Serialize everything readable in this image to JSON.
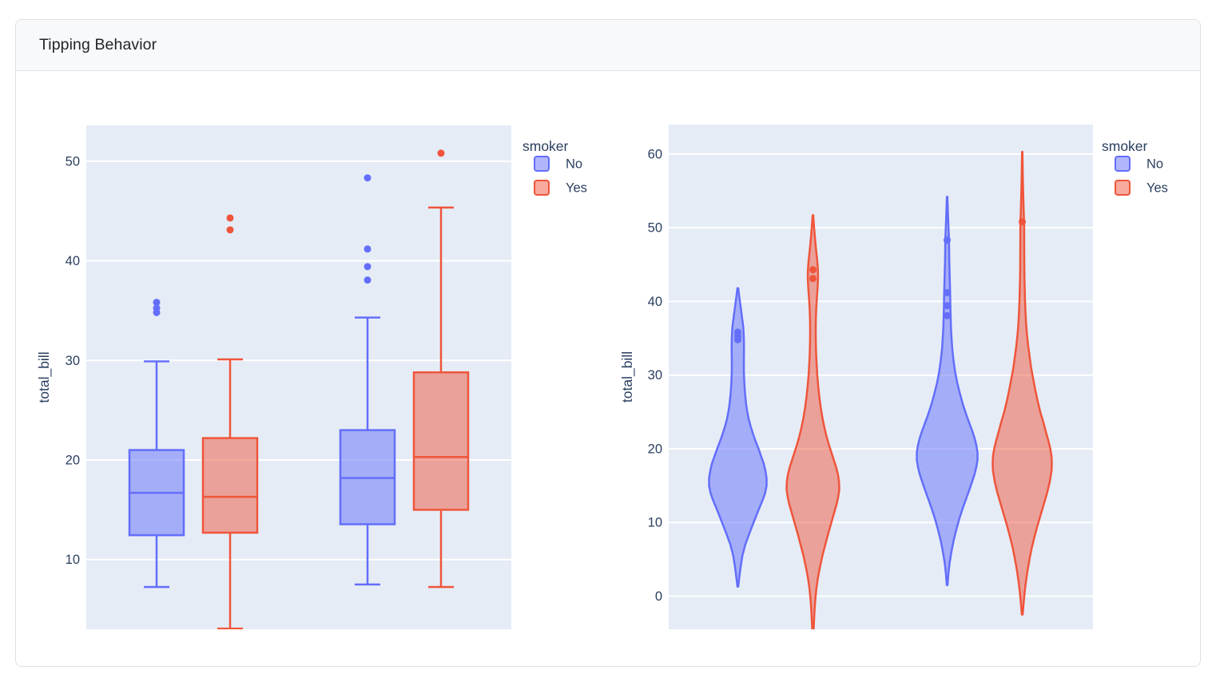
{
  "card": {
    "title": "Tipping Behavior"
  },
  "colors": {
    "no": "#636EFA",
    "yes": "#EF553B",
    "plot_bg": "#E5ECF6",
    "grid": "#FFFFFF",
    "axis_text": "#2A3F5F"
  },
  "chart_data": [
    {
      "type": "box",
      "title": "",
      "ylabel": "total_bill",
      "ylim": [
        3.0,
        53.6
      ],
      "yticks": [
        10,
        20,
        30,
        40,
        50
      ],
      "grid": true,
      "categories": [
        "",
        ""
      ],
      "legend": {
        "title": "smoker",
        "position": "outside-top-right",
        "entries": [
          "No",
          "Yes"
        ]
      },
      "series": [
        {
          "name": "No",
          "color": "#636EFA",
          "boxes": [
            {
              "whisker_low": 7.25,
              "q1": 12.45,
              "median": 16.7,
              "q3": 21.0,
              "whisker_high": 29.9,
              "outliers": [
                34.81,
                35.26,
                35.83
              ]
            },
            {
              "whisker_low": 7.5,
              "q1": 13.55,
              "median": 18.2,
              "q3": 23.0,
              "whisker_high": 34.3,
              "outliers": [
                38.07,
                39.42,
                41.19,
                48.33
              ]
            }
          ]
        },
        {
          "name": "Yes",
          "color": "#EF553B",
          "boxes": [
            {
              "whisker_low": 3.07,
              "q1": 12.7,
              "median": 16.3,
              "q3": 22.2,
              "whisker_high": 30.1,
              "outliers": [
                43.11,
                44.3
              ]
            },
            {
              "whisker_low": 7.25,
              "q1": 15.0,
              "median": 20.3,
              "q3": 28.8,
              "whisker_high": 45.35,
              "outliers": [
                50.81
              ]
            }
          ]
        }
      ]
    },
    {
      "type": "violin",
      "title": "",
      "ylabel": "total_bill",
      "ylim": [
        -4.5,
        64.0
      ],
      "yticks": [
        0,
        10,
        20,
        30,
        40,
        50,
        60
      ],
      "grid": true,
      "categories": [
        "",
        ""
      ],
      "legend": {
        "title": "smoker",
        "position": "outside-top-right",
        "entries": [
          "No",
          "Yes"
        ]
      },
      "series": [
        {
          "name": "No",
          "color": "#636EFA",
          "violins": [
            {
              "span": [
                1.3,
                41.8
              ],
              "points": [
                34.81,
                35.26,
                35.83
              ],
              "density": [
                [
                  1.3,
                  0.015
                ],
                [
                  2.5,
                  0.05
                ],
                [
                  4,
                  0.1
                ],
                [
                  5.5,
                  0.16
                ],
                [
                  7,
                  0.26
                ],
                [
                  8.5,
                  0.4
                ],
                [
                  10,
                  0.55
                ],
                [
                  11.5,
                  0.7
                ],
                [
                  13,
                  0.86
                ],
                [
                  14,
                  0.95
                ],
                [
                  15,
                  1.0
                ],
                [
                  16,
                  1.0
                ],
                [
                  17,
                  0.96
                ],
                [
                  18,
                  0.9
                ],
                [
                  19,
                  0.81
                ],
                [
                  20,
                  0.72
                ],
                [
                  21,
                  0.62
                ],
                [
                  22,
                  0.53
                ],
                [
                  23,
                  0.45
                ],
                [
                  24,
                  0.38
                ],
                [
                  25,
                  0.33
                ],
                [
                  26,
                  0.29
                ],
                [
                  27.5,
                  0.25
                ],
                [
                  29,
                  0.225
                ],
                [
                  30.5,
                  0.21
                ],
                [
                  32,
                  0.21
                ],
                [
                  33.5,
                  0.215
                ],
                [
                  35,
                  0.21
                ],
                [
                  36.5,
                  0.19
                ],
                [
                  38,
                  0.14
                ],
                [
                  39.5,
                  0.09
                ],
                [
                  40.8,
                  0.045
                ],
                [
                  41.8,
                  0.015
                ]
              ]
            },
            {
              "span": [
                1.5,
                54.2
              ],
              "points": [
                38.07,
                39.42,
                41.19,
                48.33
              ],
              "density": [
                [
                  1.5,
                  0.012
                ],
                [
                  3,
                  0.04
                ],
                [
                  4.5,
                  0.08
                ],
                [
                  6,
                  0.14
                ],
                [
                  7.5,
                  0.21
                ],
                [
                  9,
                  0.3
                ],
                [
                  10.5,
                  0.4
                ],
                [
                  12,
                  0.52
                ],
                [
                  13.5,
                  0.65
                ],
                [
                  15,
                  0.78
                ],
                [
                  16.5,
                  0.9
                ],
                [
                  17.5,
                  0.96
                ],
                [
                  18.5,
                  1.0
                ],
                [
                  19.5,
                  1.0
                ],
                [
                  20.5,
                  0.96
                ],
                [
                  21.5,
                  0.9
                ],
                [
                  22.5,
                  0.82
                ],
                [
                  23.5,
                  0.73
                ],
                [
                  24.5,
                  0.64
                ],
                [
                  26,
                  0.52
                ],
                [
                  27.5,
                  0.42
                ],
                [
                  29,
                  0.33
                ],
                [
                  30.5,
                  0.26
                ],
                [
                  32,
                  0.21
                ],
                [
                  33.5,
                  0.17
                ],
                [
                  35,
                  0.145
                ],
                [
                  36.5,
                  0.125
                ],
                [
                  38,
                  0.115
                ],
                [
                  39.5,
                  0.105
                ],
                [
                  41,
                  0.1
                ],
                [
                  42.5,
                  0.09
                ],
                [
                  44,
                  0.08
                ],
                [
                  45.5,
                  0.07
                ],
                [
                  47,
                  0.065
                ],
                [
                  48.5,
                  0.06
                ],
                [
                  50,
                  0.045
                ],
                [
                  51.5,
                  0.03
                ],
                [
                  53,
                  0.018
                ],
                [
                  54.2,
                  0.008
                ]
              ]
            }
          ]
        },
        {
          "name": "Yes",
          "color": "#EF553B",
          "violins": [
            {
              "span": [
                -5.0,
                51.7
              ],
              "points": [
                43.11,
                44.3
              ],
              "density": [
                [
                  -5,
                  0.02
                ],
                [
                  -3.5,
                  0.04
                ],
                [
                  -2,
                  0.06
                ],
                [
                  -0.5,
                  0.09
                ],
                [
                  1,
                  0.13
                ],
                [
                  2.5,
                  0.19
                ],
                [
                  4,
                  0.27
                ],
                [
                  5.5,
                  0.36
                ],
                [
                  7,
                  0.47
                ],
                [
                  8.5,
                  0.58
                ],
                [
                  10,
                  0.7
                ],
                [
                  11.5,
                  0.82
                ],
                [
                  12.5,
                  0.9
                ],
                [
                  13.5,
                  0.96
                ],
                [
                  14.5,
                  1.0
                ],
                [
                  15.5,
                  0.99
                ],
                [
                  16.5,
                  0.95
                ],
                [
                  17.5,
                  0.88
                ],
                [
                  18.5,
                  0.79
                ],
                [
                  19.5,
                  0.7
                ],
                [
                  20.5,
                  0.61
                ],
                [
                  21.5,
                  0.53
                ],
                [
                  22.5,
                  0.46
                ],
                [
                  24,
                  0.37
                ],
                [
                  25.5,
                  0.3
                ],
                [
                  27,
                  0.245
                ],
                [
                  28.5,
                  0.2
                ],
                [
                  30,
                  0.165
                ],
                [
                  31.5,
                  0.14
                ],
                [
                  33,
                  0.12
                ],
                [
                  34.5,
                  0.11
                ],
                [
                  36,
                  0.105
                ],
                [
                  37.5,
                  0.11
                ],
                [
                  39,
                  0.125
                ],
                [
                  40.5,
                  0.15
                ],
                [
                  42,
                  0.18
                ],
                [
                  43.2,
                  0.195
                ],
                [
                  44.3,
                  0.19
                ],
                [
                  45.5,
                  0.165
                ],
                [
                  47,
                  0.12
                ],
                [
                  48.5,
                  0.08
                ],
                [
                  50,
                  0.045
                ],
                [
                  51,
                  0.025
                ],
                [
                  51.7,
                  0.012
                ]
              ]
            },
            {
              "span": [
                -2.5,
                60.3
              ],
              "points": [
                50.81
              ],
              "density": [
                [
                  -2.5,
                  0.015
                ],
                [
                  -1,
                  0.045
                ],
                [
                  0.5,
                  0.08
                ],
                [
                  2,
                  0.125
                ],
                [
                  3.5,
                  0.18
                ],
                [
                  5,
                  0.245
                ],
                [
                  6.5,
                  0.32
                ],
                [
                  8,
                  0.41
                ],
                [
                  9.5,
                  0.51
                ],
                [
                  11,
                  0.62
                ],
                [
                  12.5,
                  0.73
                ],
                [
                  14,
                  0.84
                ],
                [
                  15.5,
                  0.93
                ],
                [
                  17,
                  0.99
                ],
                [
                  18,
                  1.0
                ],
                [
                  19,
                  0.99
                ],
                [
                  20,
                  0.95
                ],
                [
                  21,
                  0.89
                ],
                [
                  22,
                  0.82
                ],
                [
                  23.5,
                  0.72
                ],
                [
                  25,
                  0.61
                ],
                [
                  26.5,
                  0.52
                ],
                [
                  28,
                  0.44
                ],
                [
                  29.5,
                  0.37
                ],
                [
                  31,
                  0.3
                ],
                [
                  32.5,
                  0.25
                ],
                [
                  34,
                  0.2
                ],
                [
                  35.5,
                  0.16
                ],
                [
                  37,
                  0.13
                ],
                [
                  38.5,
                  0.11
                ],
                [
                  40,
                  0.095
                ],
                [
                  41.5,
                  0.085
                ],
                [
                  43,
                  0.075
                ],
                [
                  44.5,
                  0.07
                ],
                [
                  46,
                  0.068
                ],
                [
                  47.5,
                  0.066
                ],
                [
                  49,
                  0.065
                ],
                [
                  50.8,
                  0.063
                ],
                [
                  52,
                  0.05
                ],
                [
                  53.5,
                  0.04
                ],
                [
                  55,
                  0.03
                ],
                [
                  56.5,
                  0.022
                ],
                [
                  58,
                  0.015
                ],
                [
                  59.3,
                  0.01
                ],
                [
                  60.3,
                  0.006
                ]
              ]
            }
          ]
        }
      ]
    }
  ]
}
